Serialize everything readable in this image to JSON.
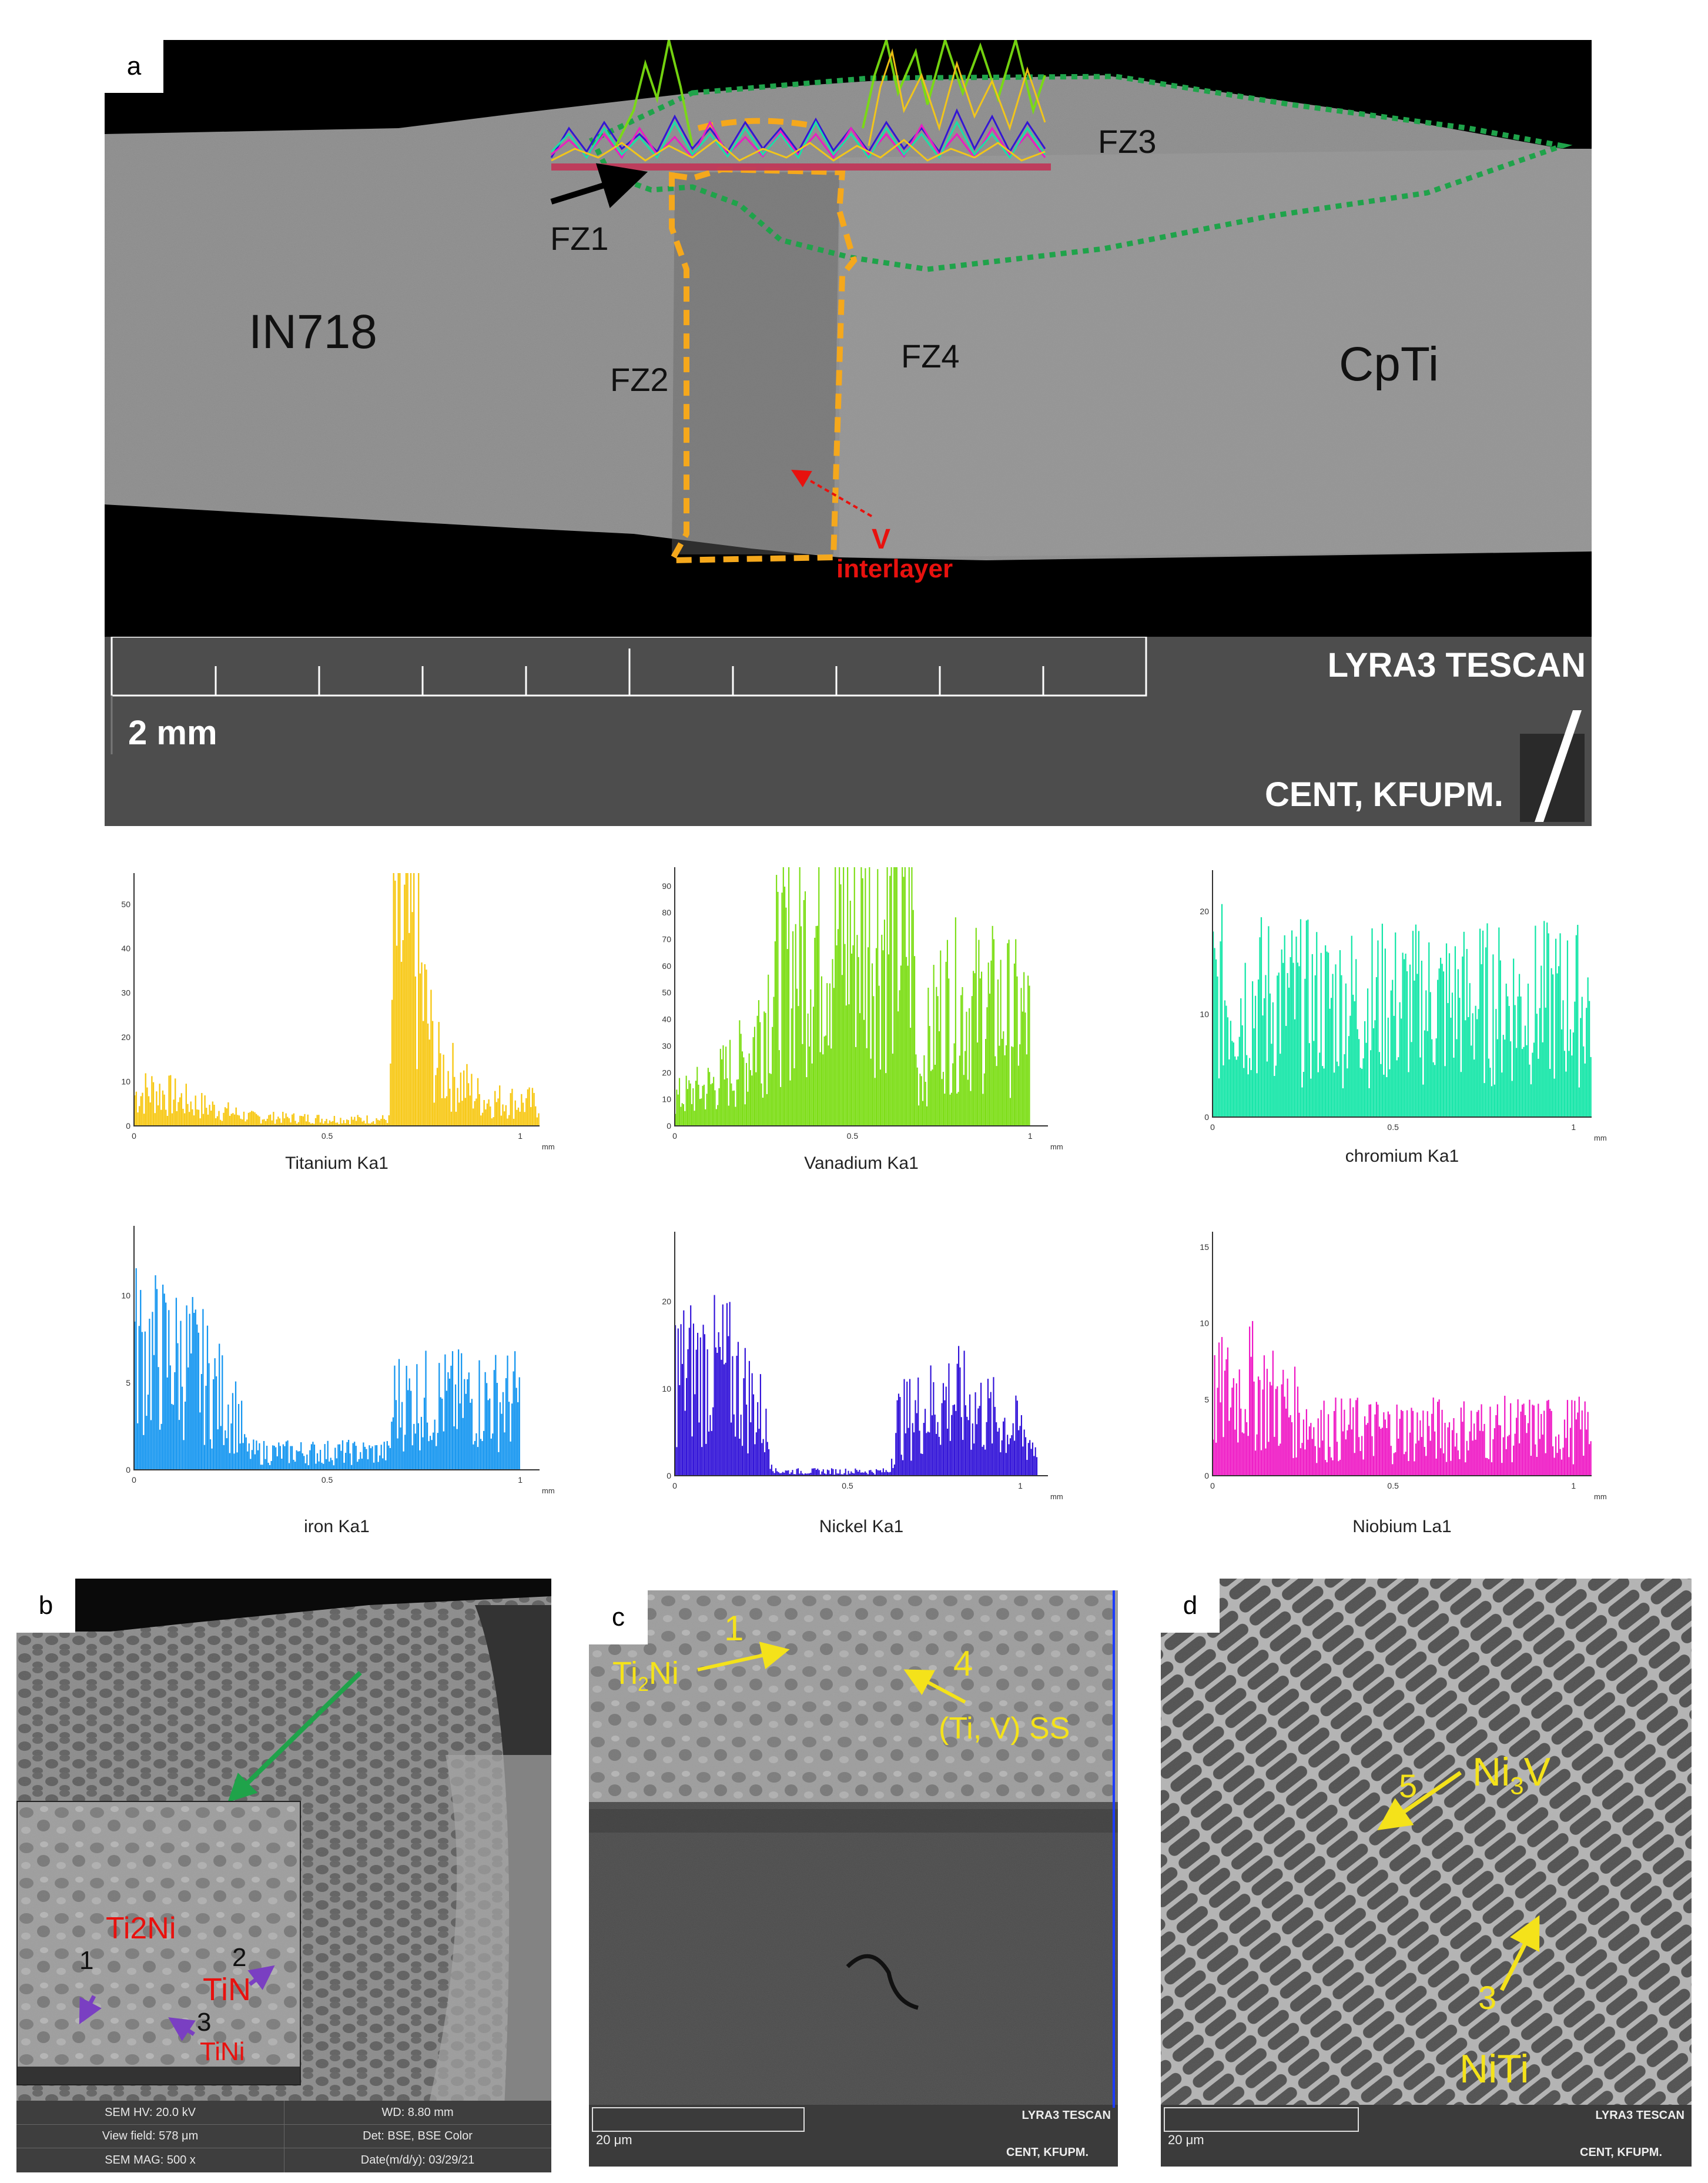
{
  "panel_a": {
    "letter": "a",
    "labels": {
      "in718": "IN718",
      "cpti": "CpTi",
      "fz1": "FZ1",
      "fz2": "FZ2",
      "fz3": "FZ3",
      "fz4": "FZ4",
      "v": "V",
      "interlayer": "interlayer"
    },
    "databar": {
      "scale": "2 mm",
      "instrument": "LYRA3 TESCAN",
      "facility": "CENT, KFUPM."
    },
    "colors": {
      "fz_outline": "#1fa34a",
      "interlayer_outline": "#f5a81c",
      "arrow_red": "#e8110e"
    }
  },
  "chart_data": [
    {
      "type": "bar",
      "title": "Titanium Ka1",
      "color": "#f7c815",
      "xlabel": "mm",
      "xlim": [
        0,
        1.05
      ],
      "xticks": [
        "0",
        "0.5",
        "1"
      ],
      "yticks": [
        "0",
        "10",
        "20",
        "30",
        "40",
        "50"
      ],
      "ylim": [
        0,
        57
      ],
      "profile": [
        [
          0,
          7
        ],
        [
          0.05,
          8
        ],
        [
          0.15,
          5
        ],
        [
          0.3,
          2
        ],
        [
          0.55,
          1.5
        ],
        [
          0.66,
          1.5
        ],
        [
          0.67,
          44
        ],
        [
          0.72,
          40
        ],
        [
          0.78,
          14
        ],
        [
          0.9,
          6
        ],
        [
          1.05,
          5
        ]
      ]
    },
    {
      "type": "bar",
      "title": "Vanadium Ka1",
      "color": "#79dd10",
      "xlabel": "mm",
      "xlim": [
        0,
        1.05
      ],
      "xticks": [
        "0",
        "0.5",
        "1"
      ],
      "yticks": [
        "0",
        "10",
        "20",
        "30",
        "40",
        "50",
        "60",
        "70",
        "80",
        "90"
      ],
      "ylim": [
        0,
        97
      ],
      "profile": [
        [
          0,
          10
        ],
        [
          0.1,
          15
        ],
        [
          0.2,
          25
        ],
        [
          0.28,
          55
        ],
        [
          0.4,
          72
        ],
        [
          0.6,
          72
        ],
        [
          0.67,
          73
        ],
        [
          0.68,
          18
        ],
        [
          0.75,
          45
        ],
        [
          0.9,
          44
        ],
        [
          1.0,
          38
        ]
      ]
    },
    {
      "type": "bar",
      "title": "chromium Ka1",
      "color": "#13e6a7",
      "xlabel": "mm",
      "xlim": [
        0,
        1.05
      ],
      "xticks": [
        "0",
        "0.5",
        "1"
      ],
      "yticks": [
        "0",
        "10",
        "20"
      ],
      "ylim": [
        0,
        24
      ],
      "profile": [
        [
          0,
          12
        ],
        [
          0.3,
          11
        ],
        [
          0.6,
          11
        ],
        [
          1.0,
          11
        ],
        [
          1.05,
          11
        ]
      ]
    },
    {
      "type": "bar",
      "title": "iron Ka1",
      "color": "#1596f0",
      "xlabel": "mm",
      "xlim": [
        0,
        1.05
      ],
      "xticks": [
        "0",
        "0.5",
        "1"
      ],
      "yticks": [
        "0",
        "5",
        "10"
      ],
      "ylim": [
        0,
        14
      ],
      "profile": [
        [
          0,
          7
        ],
        [
          0.15,
          6
        ],
        [
          0.27,
          3
        ],
        [
          0.29,
          1
        ],
        [
          0.66,
          1
        ],
        [
          0.67,
          4
        ],
        [
          0.85,
          4
        ],
        [
          1.0,
          4
        ]
      ]
    },
    {
      "type": "bar",
      "title": "Nickel Ka1",
      "color": "#2f10d8",
      "xlabel": "mm",
      "xlim": [
        0,
        1.08
      ],
      "xticks": [
        "0",
        "0.5",
        "1"
      ],
      "yticks": [
        "0",
        "10",
        "20"
      ],
      "ylim": [
        0,
        28
      ],
      "profile": [
        [
          0,
          12
        ],
        [
          0.15,
          12
        ],
        [
          0.25,
          7
        ],
        [
          0.29,
          0.5
        ],
        [
          0.62,
          0.5
        ],
        [
          0.64,
          6
        ],
        [
          0.8,
          9
        ],
        [
          1.0,
          5
        ],
        [
          1.05,
          3
        ]
      ]
    },
    {
      "type": "bar",
      "title": "Niobium La1",
      "color": "#ef19c5",
      "xlabel": "mm",
      "xlim": [
        0,
        1.05
      ],
      "xticks": [
        "0",
        "0.5",
        "1"
      ],
      "yticks": [
        "0",
        "5",
        "10",
        "15"
      ],
      "ylim": [
        0,
        16
      ],
      "profile": [
        [
          0,
          5
        ],
        [
          0.1,
          6
        ],
        [
          0.3,
          3
        ],
        [
          0.6,
          3
        ],
        [
          1.0,
          3
        ],
        [
          1.05,
          3
        ]
      ]
    }
  ],
  "panel_b": {
    "letter": "b",
    "labels": [
      {
        "num": "1",
        "phase": "Ti2Ni"
      },
      {
        "num": "2",
        "phase": "TiN"
      },
      {
        "num": "3",
        "phase": "TiNi"
      }
    ],
    "info": {
      "sem_hv": "SEM HV: 20.0 kV",
      "wd": "WD: 8.80 mm",
      "view_field": "View field: 578 μm",
      "det": "Det: BSE, BSE Color",
      "sem_mag": "SEM MAG: 500 x",
      "date": "Date(m/d/y): 03/29/21"
    }
  },
  "panel_c": {
    "letter": "c",
    "labels": {
      "num1": "1",
      "phase1": "Ti",
      "phase1_sub": "2",
      "phase1_tail": "Ni",
      "num4": "4",
      "phase4": "(Ti, V) SS"
    },
    "databar": {
      "scale": "20 μm",
      "instrument": "LYRA3 TESCAN",
      "facility": "CENT, KFUPM."
    }
  },
  "panel_d": {
    "letter": "d",
    "labels": {
      "num5": "5",
      "phase5": "Ni",
      "phase5_sub": "3",
      "phase5_tail": "V",
      "num3": "3",
      "phase3": "NiTi"
    },
    "databar": {
      "scale": "20 μm",
      "instrument": "LYRA3 TESCAN",
      "facility": "CENT, KFUPM."
    }
  }
}
